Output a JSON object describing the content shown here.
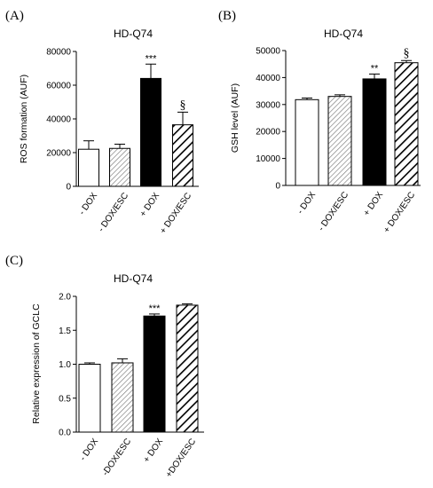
{
  "colors": {
    "axis": "#000000",
    "white": "#ffffff",
    "black": "#000000",
    "hatch_gray": "#7a7a7a"
  },
  "chart_data": [
    {
      "panel": "(A)",
      "type": "bar",
      "title": "HD-Q74",
      "ylabel": "ROS formation (AUF)",
      "ylim": [
        0,
        80000
      ],
      "yticks": [
        0,
        20000,
        40000,
        60000,
        80000
      ],
      "ytick_labels": [
        "0",
        "20000",
        "40000",
        "60000",
        "80000"
      ],
      "categories": [
        "- DOX",
        "- DOX/ESC",
        "+ DOX",
        "+ DOX/ESC"
      ],
      "values": [
        22000,
        22500,
        64000,
        36500
      ],
      "errors": [
        5000,
        2500,
        8500,
        7500
      ],
      "fills": [
        "white",
        "hatch-thin",
        "black",
        "hatch-thick"
      ],
      "annotations": [
        "",
        "",
        "***",
        "§"
      ]
    },
    {
      "panel": "(B)",
      "type": "bar",
      "title": "HD-Q74",
      "ylabel": "GSH level (AUF)",
      "ylim": [
        0,
        50000
      ],
      "yticks": [
        0,
        10000,
        20000,
        30000,
        40000,
        50000
      ],
      "ytick_labels": [
        "0",
        "10000",
        "20000",
        "30000",
        "40000",
        "50000"
      ],
      "categories": [
        "- DOX",
        "- DOX/ESC",
        "+ DOX",
        "+ DOX/ESC"
      ],
      "values": [
        31800,
        33000,
        39500,
        45500
      ],
      "errors": [
        600,
        600,
        1800,
        800
      ],
      "fills": [
        "white",
        "hatch-thin",
        "black",
        "hatch-thick"
      ],
      "annotations": [
        "",
        "",
        "**",
        "§"
      ]
    },
    {
      "panel": "(C)",
      "type": "bar",
      "title": "HD-Q74",
      "ylabel": "Relative expression of GCLC",
      "ylim": [
        0,
        2.0
      ],
      "yticks": [
        0,
        0.5,
        1.0,
        1.5,
        2.0
      ],
      "ytick_labels": [
        "0.0",
        "0.5",
        "1.0",
        "1.5",
        "2.0"
      ],
      "categories": [
        "- DOX",
        "-DOX/ESC",
        "+ DOX",
        "+DOX/ESC"
      ],
      "values": [
        1.0,
        1.02,
        1.71,
        1.87
      ],
      "errors": [
        0.02,
        0.06,
        0.03,
        0.02
      ],
      "fills": [
        "white",
        "hatch-thin",
        "black",
        "hatch-thick"
      ],
      "annotations": [
        "",
        "",
        "***",
        ""
      ]
    }
  ]
}
